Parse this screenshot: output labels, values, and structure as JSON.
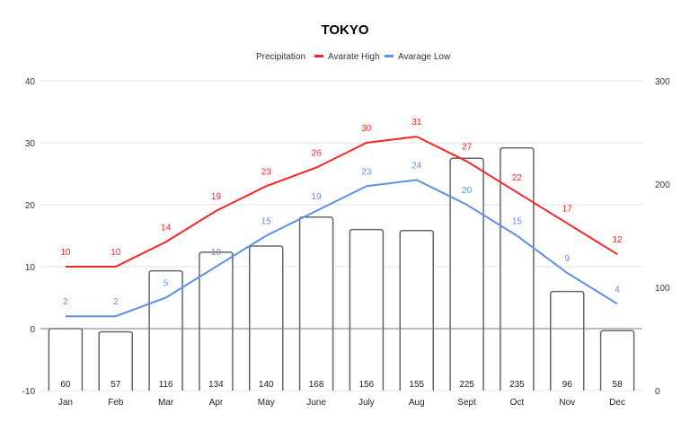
{
  "chart_data": {
    "type": "bar+line",
    "title": "TOKYO",
    "legend_position": "top",
    "grid": true,
    "categories": [
      "Jan",
      "Feb",
      "Mar",
      "Apr",
      "May",
      "June",
      "July",
      "Aug",
      "Sept",
      "Oct",
      "Nov",
      "Dec"
    ],
    "left_axis": {
      "range": [
        -10,
        40
      ],
      "ticks": [
        -10,
        0,
        10,
        20,
        30,
        40
      ]
    },
    "right_axis": {
      "range": [
        0,
        300
      ],
      "ticks": [
        0,
        100,
        200,
        300
      ]
    },
    "series": [
      {
        "name": "Precipitation",
        "type": "bar",
        "axis": "right",
        "color": "#666666",
        "fill": "#ffffff",
        "values": [
          60,
          57,
          116,
          134,
          140,
          168,
          156,
          155,
          225,
          235,
          96,
          58
        ]
      },
      {
        "name": "Avarate High",
        "type": "line",
        "axis": "left",
        "color": "#ff2222",
        "values": [
          10,
          10,
          14,
          19,
          23,
          26,
          30,
          31,
          27,
          22,
          17,
          12
        ]
      },
      {
        "name": "Avarage Low",
        "type": "line",
        "axis": "left",
        "color": "#5b8fe8",
        "values": [
          2,
          2,
          5,
          10,
          15,
          19,
          23,
          24,
          20,
          15,
          9,
          4
        ]
      }
    ]
  }
}
